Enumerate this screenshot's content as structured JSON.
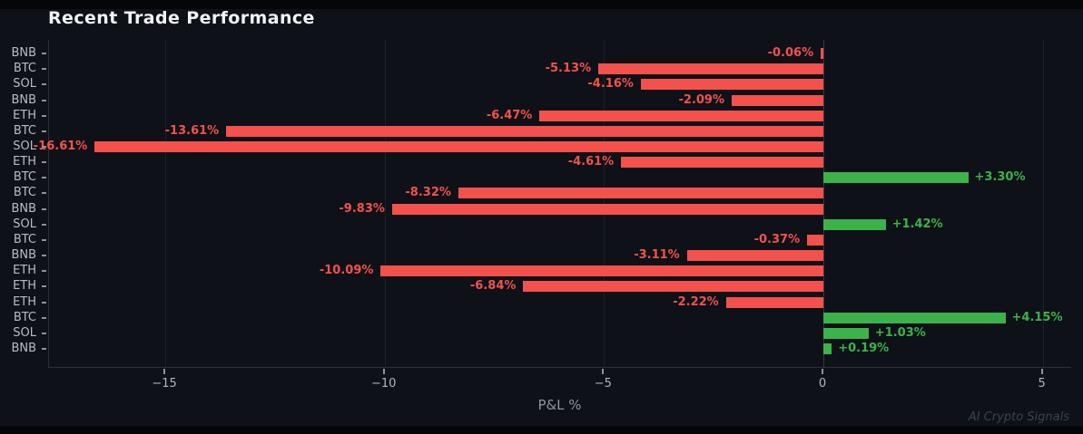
{
  "title": "Recent Trade Performance",
  "watermark": "AI Crypto Signals",
  "colors": {
    "background": "#0e1117",
    "outer_background": "#050608",
    "negative": "#f4514c",
    "positive": "#3cb34a",
    "grid": "#1b202b",
    "zero_line": "#343a46",
    "spine": "#2a2f3a",
    "tick_mark": "#8b92a0",
    "x_tick_label": "#b0b6bf",
    "y_tick_label": "#b7bdc6",
    "axis_title": "#8d95a2",
    "title_color": "#f2f4f6",
    "watermark_color": "#3b4250"
  },
  "chart_data": {
    "type": "bar",
    "orientation": "horizontal",
    "title": "Recent Trade Performance",
    "xlabel": "P&L %",
    "ylabel": "",
    "categories": [
      "BNB",
      "BTC",
      "SOL",
      "BNB",
      "ETH",
      "BTC",
      "SOL",
      "ETH",
      "BTC",
      "BTC",
      "BNB",
      "SOL",
      "BTC",
      "BNB",
      "ETH",
      "ETH",
      "ETH",
      "BTC",
      "SOL",
      "BNB"
    ],
    "values": [
      -0.06,
      -5.13,
      -4.16,
      -2.09,
      -6.47,
      -13.61,
      -16.61,
      -4.61,
      3.3,
      -8.32,
      -9.83,
      1.42,
      -0.37,
      -3.11,
      -10.09,
      -6.84,
      -2.22,
      4.15,
      1.03,
      0.19
    ],
    "labels": [
      "-0.06%",
      "-5.13%",
      "-4.16%",
      "-2.09%",
      "-6.47%",
      "-13.61%",
      "-16.61%",
      "-4.61%",
      "+3.30%",
      "-8.32%",
      "-9.83%",
      "+1.42%",
      "-0.37%",
      "-3.11%",
      "-10.09%",
      "-6.84%",
      "-2.22%",
      "+4.15%",
      "+1.03%",
      "+0.19%"
    ],
    "xlim": [
      -17.65,
      5.67
    ],
    "xticks": [
      -15,
      -10,
      -5,
      0,
      5
    ],
    "xtick_labels": [
      "−15",
      "−10",
      "−5",
      "0",
      "5"
    ],
    "grid": true,
    "legend": false,
    "bar_color_rule": "negative=red, positive=green"
  }
}
